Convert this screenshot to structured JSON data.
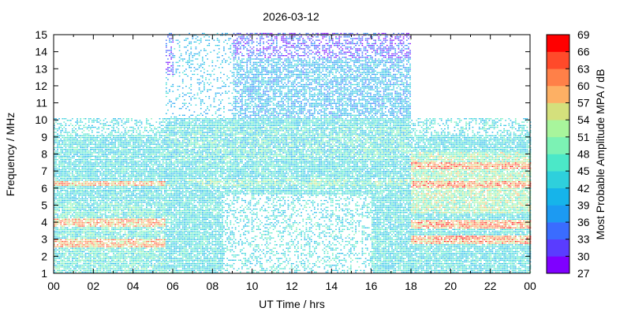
{
  "chart_data": {
    "type": "heatmap",
    "title": "2026-03-12",
    "xlabel": "UT Time / hrs",
    "ylabel": "Frequency / MHz",
    "xlim": [
      0,
      24
    ],
    "ylim": [
      1,
      15
    ],
    "x_ticks": [
      "00",
      "02",
      "04",
      "06",
      "08",
      "10",
      "12",
      "14",
      "16",
      "18",
      "20",
      "22",
      "00"
    ],
    "y_ticks": [
      "1",
      "2",
      "3",
      "4",
      "5",
      "6",
      "7",
      "8",
      "9",
      "10",
      "11",
      "12",
      "13",
      "14",
      "15"
    ],
    "colorbar": {
      "label": "Most Probable Amplitude MPA / dB",
      "min": 27,
      "max": 69,
      "tick_labels": [
        "27",
        "30",
        "33",
        "36",
        "39",
        "42",
        "45",
        "48",
        "51",
        "54",
        "57",
        "60",
        "63",
        "66",
        "69"
      ],
      "colors": [
        "#7f00ff",
        "#5a3cff",
        "#3a6cff",
        "#1c9af2",
        "#16b4ea",
        "#2ed0dc",
        "#4be8c8",
        "#7cf2b4",
        "#a8f59c",
        "#d4e07c",
        "#fdb064",
        "#ff8048",
        "#ff4a2a",
        "#ff0000"
      ]
    },
    "grid": false,
    "regions": [
      {
        "x": [
          0,
          5.6
        ],
        "y": [
          1,
          10
        ],
        "typical_mpa": [
          36,
          51
        ],
        "strong_bands_mhz": [
          2.7,
          3.9,
          6.2
        ]
      },
      {
        "x": [
          5.6,
          9
        ],
        "y": [
          1,
          15
        ],
        "typical_mpa": [
          36,
          48
        ]
      },
      {
        "x": [
          9,
          18
        ],
        "y": [
          1,
          15
        ],
        "typical_mpa": [
          36,
          48
        ],
        "upper_band_mpa": [
          27,
          39
        ]
      },
      {
        "x": [
          18,
          24
        ],
        "y": [
          1,
          10
        ],
        "typical_mpa": [
          39,
          63
        ],
        "strong_bands_mhz": [
          2.9,
          3.8,
          6.1,
          7.2
        ]
      }
    ]
  }
}
